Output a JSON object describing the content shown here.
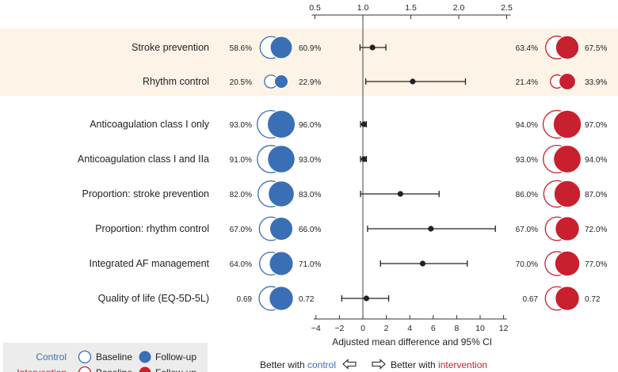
{
  "chart_data": {
    "type": "forest",
    "top_axis": {
      "ticks": [
        "0.5",
        "1.0",
        "1.5",
        "2.0",
        "2.5"
      ],
      "range": [
        0.5,
        2.5
      ]
    },
    "bottom_axis": {
      "ticks": [
        "−4",
        "−2",
        "0",
        "2",
        "4",
        "6",
        "8",
        "10",
        "12"
      ],
      "range": [
        -4,
        12
      ],
      "label": "Adjusted mean difference and 95% CI"
    },
    "rows": [
      {
        "label": "Stroke prevention",
        "scale": "ratio",
        "estimate": 1.1,
        "ci": [
          0.97,
          1.24
        ],
        "control": {
          "baseline": "58.6%",
          "followup": "60.9%",
          "baseline_value": 58.6,
          "followup_value": 60.9
        },
        "intervention": {
          "baseline": "63.4%",
          "followup": "67.5%",
          "baseline_value": 63.4,
          "followup_value": 67.5
        }
      },
      {
        "label": "Rhythm control",
        "scale": "ratio",
        "estimate": 1.52,
        "ci": [
          1.03,
          2.07
        ],
        "control": {
          "baseline": "20.5%",
          "followup": "22.9%",
          "baseline_value": 20.5,
          "followup_value": 22.9
        },
        "intervention": {
          "baseline": "21.4%",
          "followup": "33.9%",
          "baseline_value": 21.4,
          "followup_value": 33.9
        }
      },
      {
        "label": "Anticoagulation class I only",
        "scale": "difference",
        "estimate": 0.1,
        "ci": [
          -0.2,
          0.3
        ],
        "control": {
          "baseline": "93.0%",
          "followup": "96.0%",
          "baseline_value": 93.0,
          "followup_value": 96.0
        },
        "intervention": {
          "baseline": "94.0%",
          "followup": "97.0%",
          "baseline_value": 94.0,
          "followup_value": 97.0
        }
      },
      {
        "label": "Anticoagulation class I and IIa",
        "scale": "difference",
        "estimate": 0.1,
        "ci": [
          -0.2,
          0.3
        ],
        "control": {
          "baseline": "91.0%",
          "followup": "93.0%",
          "baseline_value": 91.0,
          "followup_value": 93.0
        },
        "intervention": {
          "baseline": "93.0%",
          "followup": "94.0%",
          "baseline_value": 93.0,
          "followup_value": 94.0
        }
      },
      {
        "label": "Proportion: stroke prevention",
        "scale": "difference",
        "estimate": 3.2,
        "ci": [
          -0.2,
          6.5
        ],
        "control": {
          "baseline": "82.0%",
          "followup": "83.0%",
          "baseline_value": 82.0,
          "followup_value": 83.0
        },
        "intervention": {
          "baseline": "86.0%",
          "followup": "87.0%",
          "baseline_value": 86.0,
          "followup_value": 87.0
        }
      },
      {
        "label": "Proportion: rhythm control",
        "scale": "difference",
        "estimate": 5.8,
        "ci": [
          0.4,
          11.3
        ],
        "control": {
          "baseline": "67.0%",
          "followup": "66.0%",
          "baseline_value": 67.0,
          "followup_value": 66.0
        },
        "intervention": {
          "baseline": "67.0%",
          "followup": "72.0%",
          "baseline_value": 67.0,
          "followup_value": 72.0
        }
      },
      {
        "label": "Integrated AF management",
        "scale": "difference",
        "estimate": 5.1,
        "ci": [
          1.5,
          8.9
        ],
        "control": {
          "baseline": "64.0%",
          "followup": "71.0%",
          "baseline_value": 64.0,
          "followup_value": 71.0
        },
        "intervention": {
          "baseline": "70.0%",
          "followup": "77.0%",
          "baseline_value": 70.0,
          "followup_value": 77.0
        }
      },
      {
        "label": "Quality of life (EQ-5D-5L)",
        "scale": "difference",
        "estimate": 0.3,
        "ci": [
          -1.8,
          2.2
        ],
        "control": {
          "baseline": "0.69",
          "followup": "0.72",
          "baseline_value": 0.69,
          "followup_value": 0.72
        },
        "intervention": {
          "baseline": "0.67",
          "followup": "0.72",
          "baseline_value": 0.67,
          "followup_value": 0.72
        }
      }
    ],
    "legend": {
      "control": "Control",
      "intervention": "Intervention",
      "baseline": "Baseline",
      "followup": "Follow-up",
      "placement": "bottom-left"
    },
    "direction": {
      "left_prefix": "Better with ",
      "left_group": "control",
      "right_prefix": "Better with ",
      "right_group": "intervention"
    },
    "colors": {
      "control": "#3a6fb5",
      "intervention": "#c8202f",
      "highlight": "#fdf3e6",
      "ci": "#222222"
    }
  }
}
